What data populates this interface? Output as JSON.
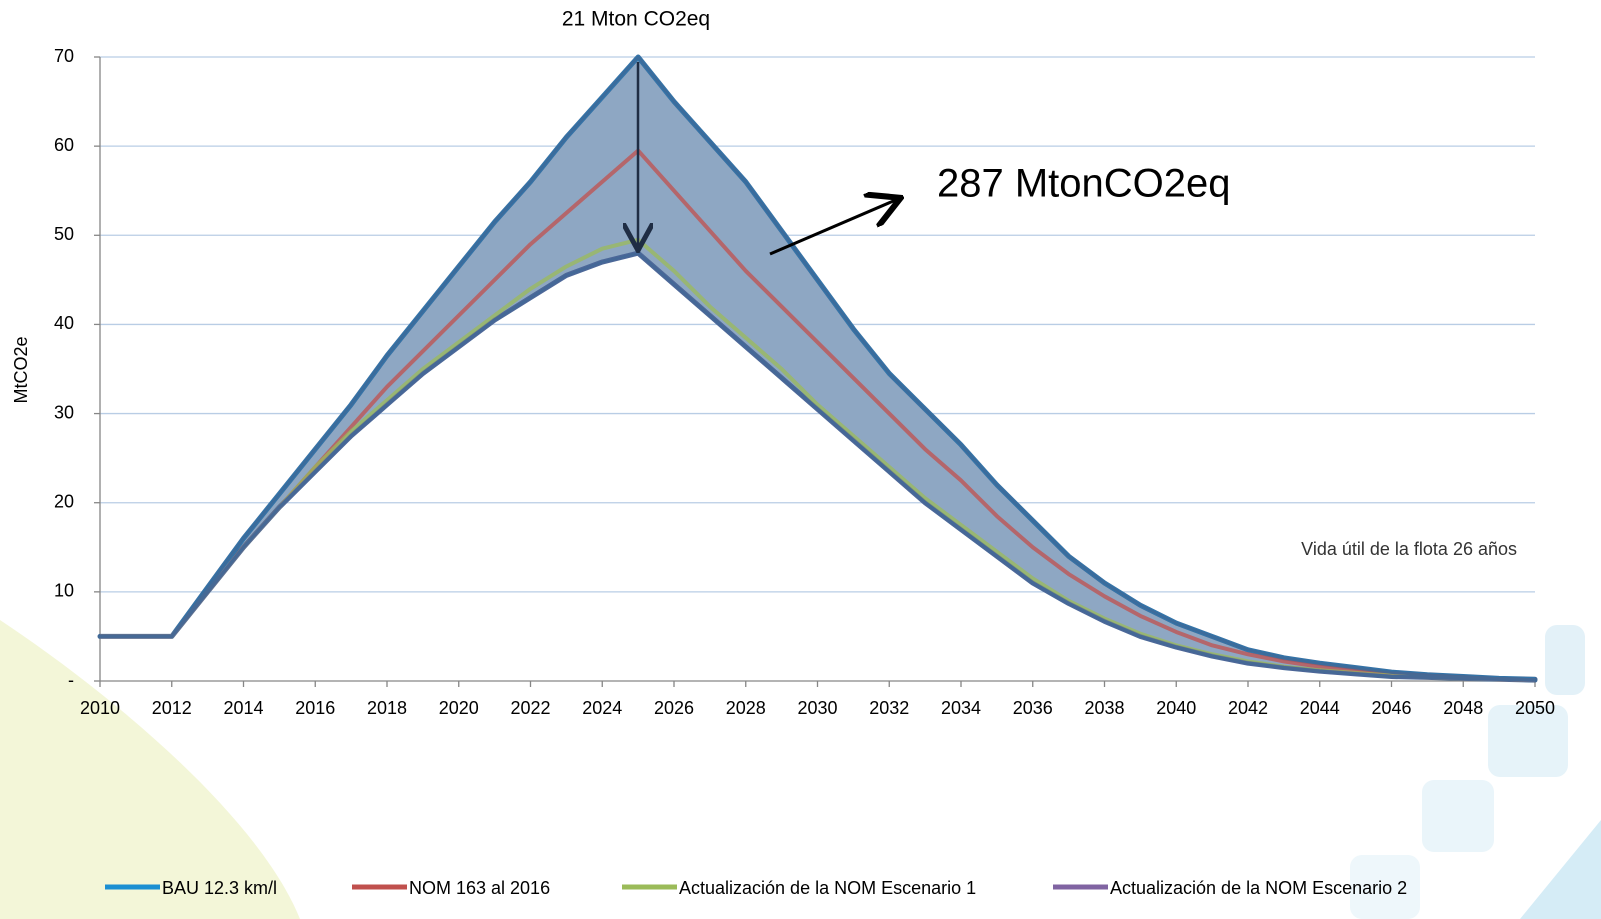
{
  "chart_data": {
    "type": "line",
    "y_label": "MtCO2e",
    "annotations": [
      "21 Mton CO2eq",
      "287 MtonCO2eq",
      "Vida útil de la flota 26 años"
    ],
    "x": [
      2010,
      2011,
      2012,
      2013,
      2014,
      2015,
      2016,
      2017,
      2018,
      2019,
      2020,
      2021,
      2022,
      2023,
      2024,
      2025,
      2026,
      2027,
      2028,
      2029,
      2030,
      2031,
      2032,
      2033,
      2034,
      2035,
      2036,
      2037,
      2038,
      2039,
      2040,
      2041,
      2042,
      2043,
      2044,
      2045,
      2046,
      2047,
      2048,
      2049,
      2050
    ],
    "series": [
      {
        "name": "BAU 12.3 km/l",
        "color": "#1b8fd2",
        "values": [
          5,
          5,
          5,
          10.5,
          16,
          21,
          26,
          31,
          36.5,
          41.5,
          46.5,
          51.5,
          56,
          61,
          65.5,
          70,
          65,
          60.5,
          56,
          50.5,
          45,
          39.5,
          34.5,
          30.5,
          26.5,
          22,
          18,
          14,
          11,
          8.5,
          6.5,
          5,
          3.5,
          2.6,
          2,
          1.5,
          1,
          0.7,
          0.5,
          0.3,
          0.2
        ]
      },
      {
        "name": "NOM 163 al 2016",
        "color": "#c0504d",
        "values": [
          5,
          5,
          5,
          10,
          15,
          19.5,
          24,
          28.5,
          33,
          37,
          41,
          45,
          49,
          52.5,
          56,
          59.5,
          55,
          50.5,
          46,
          42,
          38,
          34,
          30,
          26,
          22.5,
          18.5,
          15,
          12,
          9.5,
          7.3,
          5.5,
          4,
          3,
          2.2,
          1.6,
          1.2,
          0.8,
          0.6,
          0.4,
          0.2,
          0.1
        ]
      },
      {
        "name": "Actualización de la NOM Escenario 1",
        "color": "#9bbb59",
        "values": [
          5,
          5,
          5,
          10,
          15,
          19.5,
          24,
          28,
          31.5,
          35,
          38,
          41,
          44,
          46.5,
          48.5,
          49.5,
          46,
          42,
          38.5,
          35,
          31,
          27.5,
          24,
          20.5,
          17.5,
          14.5,
          11.5,
          9,
          7,
          5.3,
          4,
          3,
          2.2,
          1.6,
          1.2,
          0.9,
          0.6,
          0.4,
          0.3,
          0.2,
          0.1
        ]
      },
      {
        "name": "Actualización de la NOM Escenario 2",
        "color": "#8064a2",
        "values": [
          5,
          5,
          5,
          10,
          15,
          19.5,
          23.5,
          27.5,
          31,
          34.5,
          37.5,
          40.5,
          43,
          45.5,
          47,
          48,
          44.5,
          41,
          37.5,
          34,
          30.5,
          27,
          23.5,
          20,
          17,
          14,
          11,
          8.7,
          6.7,
          5,
          3.8,
          2.8,
          2,
          1.5,
          1.1,
          0.8,
          0.5,
          0.4,
          0.3,
          0.2,
          0.1
        ]
      }
    ],
    "area_color": "#8ea7c3",
    "xlim": [
      2010,
      2050
    ],
    "xticks": [
      2010,
      2012,
      2014,
      2016,
      2018,
      2020,
      2022,
      2024,
      2026,
      2028,
      2030,
      2032,
      2034,
      2036,
      2038,
      2040,
      2042,
      2044,
      2046,
      2048,
      2050
    ],
    "ylim": [
      0,
      70
    ],
    "yticks": [
      {
        "value": 0,
        "label": "-"
      },
      10,
      20,
      30,
      40,
      50,
      60,
      70
    ],
    "grid": true
  }
}
